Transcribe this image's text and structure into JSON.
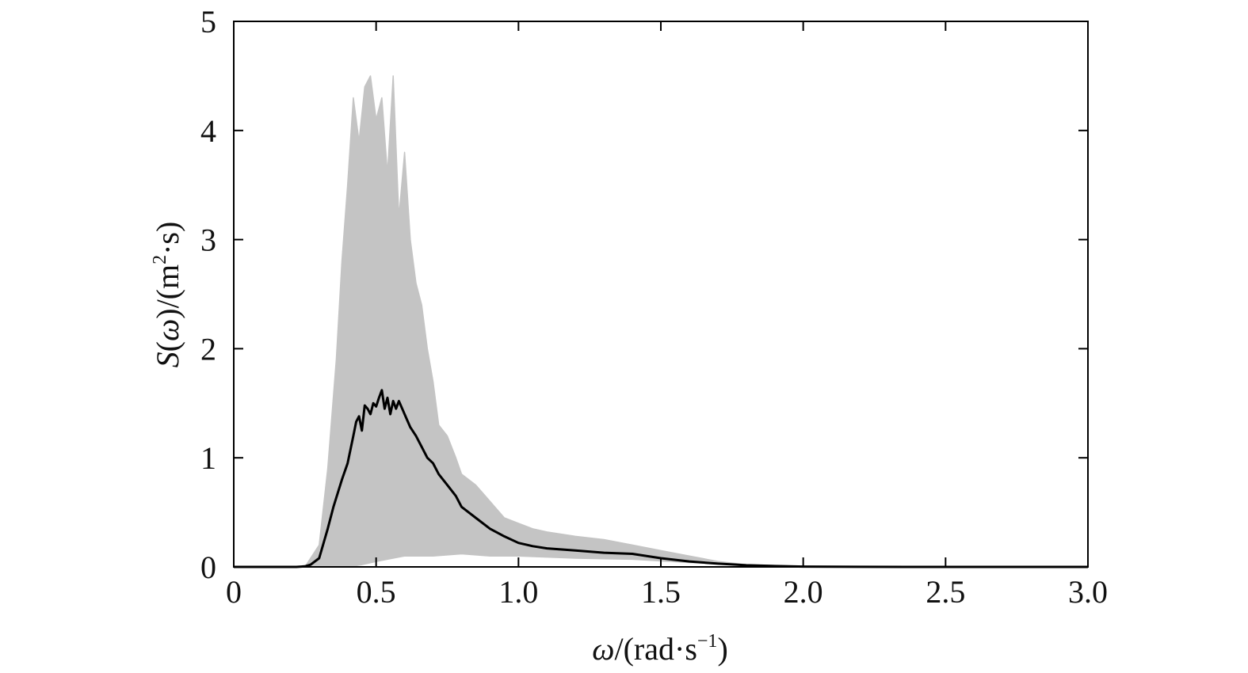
{
  "chart_data": {
    "type": "line",
    "title": "",
    "xlabel": {
      "symbol": "ω",
      "rest": "/(rad·s",
      "sup": "−1",
      "close": ")"
    },
    "ylabel": {
      "symbol": "S",
      "open": "(",
      "symbol2": "ω",
      "rest": ")/(m",
      "sup": "2",
      "rest2": "·s)"
    },
    "xlim": [
      0,
      3.0
    ],
    "ylim": [
      0,
      5
    ],
    "x_ticks": [
      0,
      0.5,
      1.0,
      1.5,
      2.0,
      2.5,
      3.0
    ],
    "x_tick_labels": [
      "0",
      "0.5",
      "1.0",
      "1.5",
      "2.0",
      "2.5",
      "3.0"
    ],
    "y_ticks": [
      0,
      1,
      2,
      3,
      4,
      5
    ],
    "y_tick_labels": [
      "0",
      "1",
      "2",
      "3",
      "4",
      "5"
    ],
    "grid": false,
    "legend": "none",
    "colors": {
      "samples": "#c4c4c4",
      "mean": "#000000",
      "axes": "#000000"
    },
    "series": [
      {
        "role": "sample-envelope-upper",
        "x": [
          0.25,
          0.3,
          0.33,
          0.36,
          0.38,
          0.4,
          0.42,
          0.44,
          0.46,
          0.48,
          0.5,
          0.52,
          0.54,
          0.56,
          0.58,
          0.6,
          0.62,
          0.64,
          0.66,
          0.68,
          0.7,
          0.72,
          0.75,
          0.78,
          0.8,
          0.85,
          0.9,
          0.95,
          1.0,
          1.05,
          1.1,
          1.2,
          1.3,
          1.4,
          1.5,
          1.6,
          1.7,
          1.8,
          1.9,
          2.0,
          2.2
        ],
        "y": [
          0,
          0.2,
          0.9,
          1.9,
          2.8,
          3.5,
          4.3,
          3.9,
          4.4,
          4.5,
          4.1,
          4.3,
          3.6,
          4.5,
          3.2,
          3.8,
          3.0,
          2.6,
          2.4,
          2.0,
          1.7,
          1.3,
          1.2,
          1.0,
          0.85,
          0.75,
          0.6,
          0.45,
          0.4,
          0.35,
          0.32,
          0.28,
          0.25,
          0.2,
          0.15,
          0.1,
          0.05,
          0.02,
          0.01,
          0.005,
          0
        ]
      },
      {
        "role": "sample-envelope-lower",
        "x": [
          0.25,
          0.4,
          0.45,
          0.5,
          0.6,
          0.7,
          0.8,
          0.9,
          1.0,
          1.2,
          1.4,
          1.6,
          1.8,
          2.0,
          2.2
        ],
        "y": [
          0,
          0,
          0.02,
          0.05,
          0.1,
          0.1,
          0.12,
          0.1,
          0.1,
          0.08,
          0.07,
          0.04,
          0.02,
          0.005,
          0
        ]
      },
      {
        "role": "mean",
        "x": [
          0,
          0.22,
          0.25,
          0.27,
          0.3,
          0.33,
          0.35,
          0.38,
          0.4,
          0.42,
          0.43,
          0.44,
          0.45,
          0.46,
          0.47,
          0.48,
          0.49,
          0.5,
          0.51,
          0.52,
          0.53,
          0.54,
          0.55,
          0.56,
          0.57,
          0.58,
          0.6,
          0.62,
          0.64,
          0.66,
          0.68,
          0.7,
          0.72,
          0.75,
          0.78,
          0.8,
          0.85,
          0.9,
          0.95,
          1.0,
          1.05,
          1.1,
          1.2,
          1.3,
          1.4,
          1.5,
          1.6,
          1.7,
          1.8,
          1.9,
          2.0,
          2.2,
          2.4,
          3.0
        ],
        "y": [
          0,
          0,
          0.005,
          0.02,
          0.08,
          0.35,
          0.55,
          0.8,
          0.95,
          1.2,
          1.33,
          1.38,
          1.25,
          1.48,
          1.45,
          1.4,
          1.5,
          1.47,
          1.55,
          1.62,
          1.45,
          1.55,
          1.4,
          1.52,
          1.45,
          1.52,
          1.4,
          1.28,
          1.2,
          1.1,
          1.0,
          0.95,
          0.85,
          0.75,
          0.65,
          0.55,
          0.45,
          0.35,
          0.28,
          0.22,
          0.19,
          0.17,
          0.15,
          0.13,
          0.12,
          0.08,
          0.05,
          0.03,
          0.015,
          0.008,
          0.003,
          0.001,
          0,
          0
        ]
      }
    ]
  }
}
